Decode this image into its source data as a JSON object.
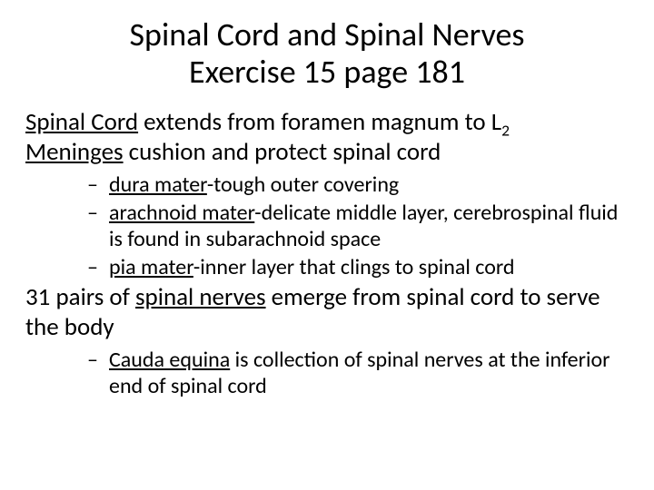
{
  "colors": {
    "background": "#ffffff",
    "text": "#000000"
  },
  "typography": {
    "title_fontsize": 36,
    "body_fontsize": 27,
    "sub_fontsize": 24,
    "font_family": "Calibri"
  },
  "title": {
    "line1": "Spinal Cord and Spinal Nerves",
    "line2": "Exercise 15 page 181"
  },
  "body": {
    "line1": {
      "term": "Spinal Cord",
      "rest": " extends from foramen magnum to L",
      "sub": "2"
    },
    "line2": {
      "term": "Meninges",
      "rest": " cushion and protect spinal cord"
    },
    "meninges_items": [
      {
        "term": "dura mater",
        "rest": "-tough outer covering"
      },
      {
        "term": "arachnoid mater",
        "rest": "-delicate middle layer, cerebrospinal fluid is found in subarachnoid space"
      },
      {
        "term": "pia mater",
        "rest": "-inner layer that clings to spinal cord"
      }
    ],
    "line3": {
      "pre": "31 pairs of ",
      "term": "spinal nerves",
      "rest": " emerge from spinal cord to serve the body"
    },
    "nerves_items": [
      {
        "term": "Cauda equina",
        "rest": " is collection of spinal nerves at the inferior end of spinal cord"
      }
    ]
  },
  "bullet": {
    "dash": "–"
  }
}
